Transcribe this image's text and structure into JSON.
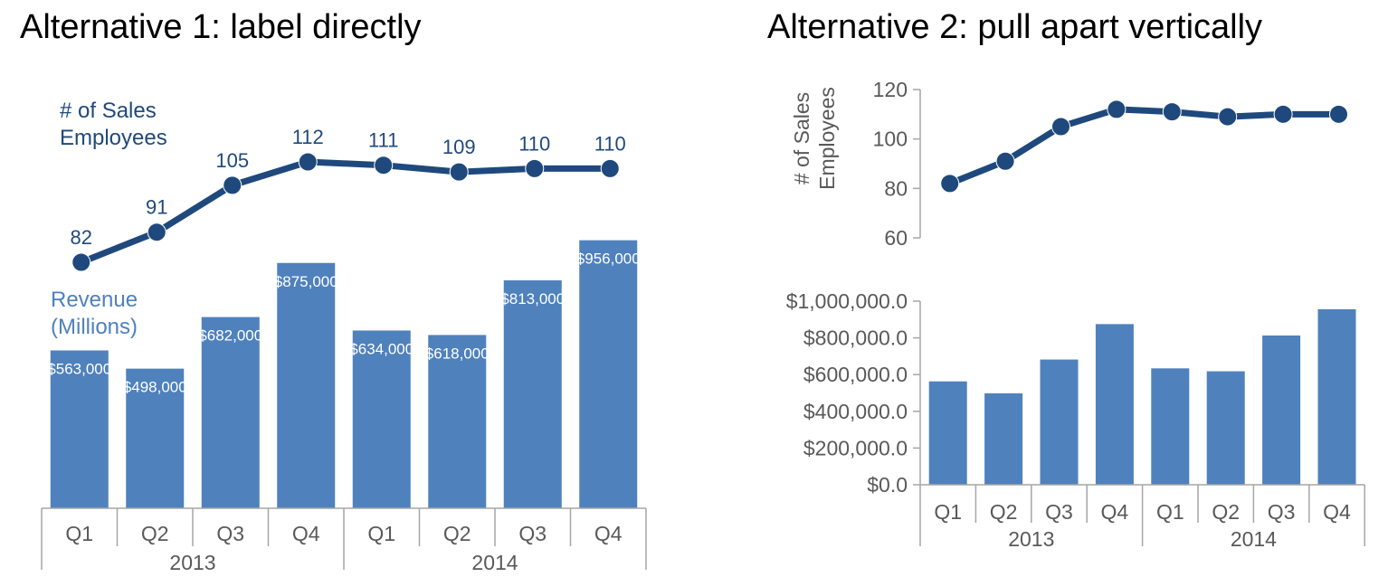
{
  "colors": {
    "line": "#1f497d",
    "bar": "#4f81bd",
    "axis": "#a6a6a6",
    "tick_text": "#595959",
    "title": "#000000",
    "bar_label": "#ffffff"
  },
  "chart_data": [
    {
      "type": "bar+line",
      "title": "Alternative 1: label directly",
      "categories": [
        "Q1",
        "Q2",
        "Q3",
        "Q4",
        "Q1",
        "Q2",
        "Q3",
        "Q4"
      ],
      "groups": [
        {
          "label": "2013",
          "count": 4
        },
        {
          "label": "2014",
          "count": 4
        }
      ],
      "series": [
        {
          "name": "# of Sales Employees",
          "kind": "line",
          "values": [
            82,
            91,
            105,
            112,
            111,
            109,
            110,
            110
          ]
        },
        {
          "name": "Revenue (Millions)",
          "kind": "bar",
          "values": [
            563000,
            498000,
            682000,
            875000,
            634000,
            618000,
            813000,
            956000
          ]
        }
      ],
      "series_labels": {
        "line": [
          "# of Sales",
          "Employees"
        ],
        "bar": [
          "Revenue",
          "(Millions)"
        ]
      },
      "line_data_labels": [
        "82",
        "91",
        "105",
        "112",
        "111",
        "109",
        "110",
        "110"
      ],
      "bar_data_labels": [
        "$563,000",
        "$498,000",
        "$682,000",
        "$875,000",
        "$634,000",
        "$618,000",
        "$813,000",
        "$956,000"
      ],
      "grid": false,
      "value_axis_shown": false
    },
    {
      "type": "line",
      "title": "Alternative 2: pull apart vertically",
      "categories": [
        "Q1",
        "Q2",
        "Q3",
        "Q4",
        "Q1",
        "Q2",
        "Q3",
        "Q4"
      ],
      "series": [
        {
          "name": "# of Sales Employees",
          "values": [
            82,
            91,
            105,
            112,
            111,
            109,
            110,
            110
          ]
        }
      ],
      "ylabel": [
        "# of Sales",
        "Employees"
      ],
      "ylim": [
        60,
        120
      ],
      "yticks": [
        60,
        80,
        100,
        120
      ],
      "ytick_labels": [
        "60",
        "80",
        "100",
        "120"
      ],
      "grid": false
    },
    {
      "type": "bar",
      "categories": [
        "Q1",
        "Q2",
        "Q3",
        "Q4",
        "Q1",
        "Q2",
        "Q3",
        "Q4"
      ],
      "groups": [
        {
          "label": "2013",
          "count": 4
        },
        {
          "label": "2014",
          "count": 4
        }
      ],
      "series": [
        {
          "name": "Revenue",
          "values": [
            563000,
            498000,
            682000,
            875000,
            634000,
            618000,
            813000,
            956000
          ]
        }
      ],
      "ylim": [
        0,
        1000000
      ],
      "yticks": [
        0,
        200000,
        400000,
        600000,
        800000,
        1000000
      ],
      "ytick_labels": [
        "$0.0",
        "$200,000.0",
        "$400,000.0",
        "$600,000.0",
        "$800,000.0",
        "$1,000,000.0"
      ],
      "grid": false
    }
  ]
}
